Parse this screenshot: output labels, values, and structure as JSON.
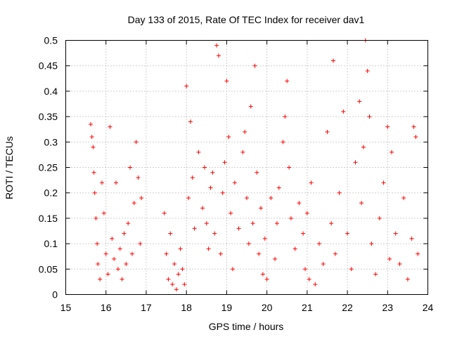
{
  "chart_data": {
    "type": "scatter",
    "title": "Day 133 of 2015, Rate Of TEC Index for receiver dav1",
    "xlabel": "GPS time / hours",
    "ylabel": "ROTI / TECUs",
    "xlim": [
      15,
      24
    ],
    "ylim": [
      0,
      0.5
    ],
    "xticks": [
      "15",
      "16",
      "17",
      "18",
      "19",
      "20",
      "21",
      "22",
      "23",
      "24"
    ],
    "yticks": [
      "0",
      "0.05",
      "0.1",
      "0.15",
      "0.2",
      "0.25",
      "0.3",
      "0.35",
      "0.4",
      "0.45",
      "0.5"
    ],
    "grid": true,
    "marker": "+",
    "color": "#ff0000",
    "series": [
      {
        "name": "ROTI",
        "points": [
          [
            15.62,
            0.335
          ],
          [
            15.65,
            0.31
          ],
          [
            15.68,
            0.29
          ],
          [
            15.7,
            0.24
          ],
          [
            15.72,
            0.2
          ],
          [
            15.75,
            0.15
          ],
          [
            15.78,
            0.1
          ],
          [
            15.8,
            0.06
          ],
          [
            15.85,
            0.03
          ],
          [
            15.9,
            0.22
          ],
          [
            15.95,
            0.16
          ],
          [
            16.0,
            0.08
          ],
          [
            16.05,
            0.04
          ],
          [
            16.1,
            0.33
          ],
          [
            16.15,
            0.11
          ],
          [
            16.2,
            0.07
          ],
          [
            16.25,
            0.22
          ],
          [
            16.3,
            0.05
          ],
          [
            16.35,
            0.09
          ],
          [
            16.4,
            0.03
          ],
          [
            16.45,
            0.12
          ],
          [
            16.5,
            0.06
          ],
          [
            16.55,
            0.14
          ],
          [
            16.6,
            0.25
          ],
          [
            16.65,
            0.08
          ],
          [
            16.7,
            0.18
          ],
          [
            16.75,
            0.3
          ],
          [
            16.8,
            0.23
          ],
          [
            16.85,
            0.1
          ],
          [
            16.88,
            0.19
          ],
          [
            17.45,
            0.16
          ],
          [
            17.5,
            0.08
          ],
          [
            17.55,
            0.03
          ],
          [
            17.6,
            0.12
          ],
          [
            17.65,
            0.02
          ],
          [
            17.7,
            0.06
          ],
          [
            17.75,
            0.01
          ],
          [
            17.8,
            0.04
          ],
          [
            17.85,
            0.09
          ],
          [
            17.9,
            0.05
          ],
          [
            17.95,
            0.02
          ],
          [
            18.0,
            0.41
          ],
          [
            18.05,
            0.19
          ],
          [
            18.1,
            0.34
          ],
          [
            18.15,
            0.23
          ],
          [
            18.2,
            0.13
          ],
          [
            18.3,
            0.28
          ],
          [
            18.4,
            0.17
          ],
          [
            18.45,
            0.25
          ],
          [
            18.5,
            0.14
          ],
          [
            18.55,
            0.09
          ],
          [
            18.6,
            0.21
          ],
          [
            18.65,
            0.24
          ],
          [
            18.7,
            0.12
          ],
          [
            18.75,
            0.49
          ],
          [
            18.8,
            0.47
          ],
          [
            18.85,
            0.08
          ],
          [
            18.9,
            0.2
          ],
          [
            18.95,
            0.26
          ],
          [
            19.0,
            0.42
          ],
          [
            19.05,
            0.31
          ],
          [
            19.1,
            0.16
          ],
          [
            19.15,
            0.05
          ],
          [
            19.2,
            0.22
          ],
          [
            19.3,
            0.13
          ],
          [
            19.4,
            0.28
          ],
          [
            19.45,
            0.32
          ],
          [
            19.5,
            0.19
          ],
          [
            19.55,
            0.1
          ],
          [
            19.6,
            0.37
          ],
          [
            19.65,
            0.14
          ],
          [
            19.7,
            0.45
          ],
          [
            19.75,
            0.24
          ],
          [
            19.8,
            0.08
          ],
          [
            19.85,
            0.17
          ],
          [
            19.9,
            0.04
          ],
          [
            19.95,
            0.11
          ],
          [
            20.0,
            0.03
          ],
          [
            20.1,
            0.19
          ],
          [
            20.2,
            0.07
          ],
          [
            20.25,
            0.14
          ],
          [
            20.3,
            0.21
          ],
          [
            20.4,
            0.3
          ],
          [
            20.45,
            0.35
          ],
          [
            20.5,
            0.42
          ],
          [
            20.55,
            0.25
          ],
          [
            20.6,
            0.15
          ],
          [
            20.7,
            0.09
          ],
          [
            20.8,
            0.18
          ],
          [
            20.9,
            0.12
          ],
          [
            20.95,
            0.05
          ],
          [
            21.0,
            0.16
          ],
          [
            21.05,
            0.03
          ],
          [
            21.1,
            0.22
          ],
          [
            21.2,
            0.02
          ],
          [
            21.3,
            0.1
          ],
          [
            21.4,
            0.06
          ],
          [
            21.5,
            0.32
          ],
          [
            21.6,
            0.14
          ],
          [
            21.65,
            0.46
          ],
          [
            21.7,
            0.08
          ],
          [
            21.8,
            0.2
          ],
          [
            21.9,
            0.36
          ],
          [
            22.0,
            0.12
          ],
          [
            22.1,
            0.05
          ],
          [
            22.2,
            0.26
          ],
          [
            22.3,
            0.38
          ],
          [
            22.35,
            0.18
          ],
          [
            22.4,
            0.29
          ],
          [
            22.45,
            0.5
          ],
          [
            22.5,
            0.44
          ],
          [
            22.55,
            0.35
          ],
          [
            22.6,
            0.1
          ],
          [
            22.7,
            0.04
          ],
          [
            22.8,
            0.15
          ],
          [
            22.9,
            0.22
          ],
          [
            23.0,
            0.33
          ],
          [
            23.05,
            0.07
          ],
          [
            23.1,
            0.28
          ],
          [
            23.2,
            0.12
          ],
          [
            23.3,
            0.06
          ],
          [
            23.4,
            0.19
          ],
          [
            23.5,
            0.03
          ],
          [
            23.6,
            0.11
          ],
          [
            23.65,
            0.33
          ],
          [
            23.7,
            0.31
          ],
          [
            23.75,
            0.08
          ]
        ]
      }
    ]
  }
}
